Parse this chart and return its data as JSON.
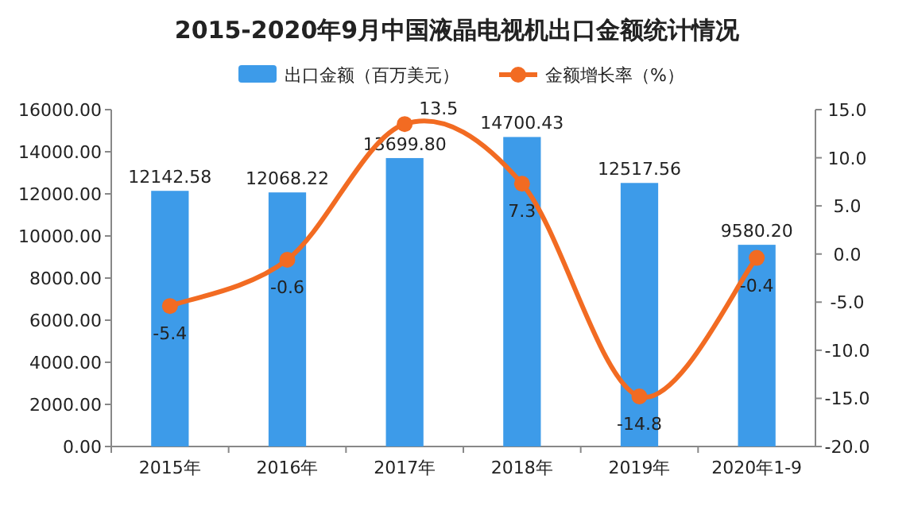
{
  "chart_data": {
    "type": "bar",
    "title": "2015-2020年9月中国液晶电视机出口金额统计情况",
    "categories": [
      "2015年",
      "2016年",
      "2017年",
      "2018年",
      "2019年",
      "2020年1-9"
    ],
    "series": [
      {
        "name": "出口金额（百万美元）",
        "color": "#3d9be9",
        "values": [
          12142.58,
          12068.22,
          13699.8,
          14700.43,
          12517.56,
          9580.2
        ],
        "value_labels": [
          "12142.58",
          "12068.22",
          "13699.80",
          "14700.43",
          "12517.56",
          "9580.20"
        ]
      },
      {
        "name": "金额增长率（%）",
        "type": "line",
        "axis": "y2",
        "color": "#f26b22",
        "marker": "circle",
        "values": [
          -5.4,
          -0.6,
          13.5,
          7.3,
          -14.8,
          -0.4
        ]
      }
    ],
    "ylim": [
      0,
      16000
    ],
    "yticks": [
      {
        "value": 0,
        "label": "0.00"
      },
      {
        "value": 2000,
        "label": "2000.00"
      },
      {
        "value": 4000,
        "label": "4000.00"
      },
      {
        "value": 6000,
        "label": "6000.00"
      },
      {
        "value": 8000,
        "label": "8000.00"
      },
      {
        "value": 10000,
        "label": "10000.00"
      },
      {
        "value": 12000,
        "label": "12000.00"
      },
      {
        "value": 14000,
        "label": "14000.00"
      },
      {
        "value": 16000,
        "label": "16000.00"
      }
    ],
    "y2lim": [
      -20,
      15
    ],
    "y2ticks": [
      {
        "value": -20,
        "label": "-20.0"
      },
      {
        "value": -15,
        "label": "-15.0"
      },
      {
        "value": -10,
        "label": "-10.0"
      },
      {
        "value": -5,
        "label": "-5.0"
      },
      {
        "value": 0,
        "label": "0.0"
      },
      {
        "value": 5,
        "label": "5.0"
      },
      {
        "value": 10,
        "label": "10.0"
      },
      {
        "value": 15,
        "label": "15.0"
      }
    ],
    "data_labels": true,
    "legend": "top",
    "grid": false
  }
}
